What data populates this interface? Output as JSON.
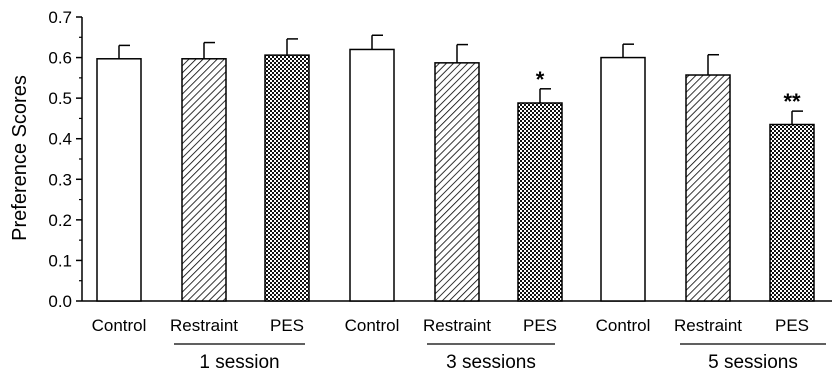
{
  "chart_data": {
    "type": "bar",
    "ylabel": "Preference Scores",
    "ylim": [
      0,
      0.7
    ],
    "yticks": [
      "0.0",
      "0.1",
      "0.2",
      "0.3",
      "0.4",
      "0.5",
      "0.6",
      "0.7"
    ],
    "grid": false,
    "groups": [
      {
        "label": "1 session",
        "bars": [
          {
            "category": "Control",
            "value": 0.597,
            "error": 0.033,
            "pattern": "white",
            "significance": ""
          },
          {
            "category": "Restraint",
            "value": 0.597,
            "error": 0.04,
            "pattern": "hatched",
            "significance": ""
          },
          {
            "category": "PES",
            "value": 0.606,
            "error": 0.04,
            "pattern": "checkered",
            "significance": ""
          }
        ]
      },
      {
        "label": "3 sessions",
        "bars": [
          {
            "category": "Control",
            "value": 0.62,
            "error": 0.035,
            "pattern": "white",
            "significance": ""
          },
          {
            "category": "Restraint",
            "value": 0.587,
            "error": 0.045,
            "pattern": "hatched",
            "significance": ""
          },
          {
            "category": "PES",
            "value": 0.488,
            "error": 0.035,
            "pattern": "checkered",
            "significance": "*"
          }
        ]
      },
      {
        "label": "5 sessions",
        "bars": [
          {
            "category": "Control",
            "value": 0.6,
            "error": 0.033,
            "pattern": "white",
            "significance": ""
          },
          {
            "category": "Restraint",
            "value": 0.557,
            "error": 0.05,
            "pattern": "hatched",
            "significance": ""
          },
          {
            "category": "PES",
            "value": 0.435,
            "error": 0.033,
            "pattern": "checkered",
            "significance": "**"
          }
        ]
      }
    ],
    "colors": {
      "bar_fill": "#ffffff",
      "stroke": "#000000"
    }
  }
}
